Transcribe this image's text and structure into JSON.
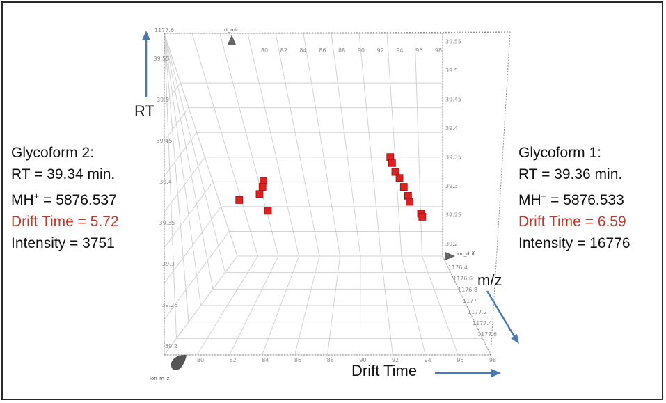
{
  "colors": {
    "grid": "#d2d2d2",
    "frame_dotted": "#8a8a8a",
    "tick": "#8c8c8c",
    "marker": "#e02020",
    "arrow": "#4a78b0",
    "drift_text": "#c0392b"
  },
  "labels": {
    "rt": "RT",
    "mz": "m/z",
    "drift": "Drift Time",
    "axis_rt_min": "rt_min",
    "axis_ion_drift": "ion_drift",
    "axis_ion_mz": "ion_m_z"
  },
  "glycoform2": {
    "title": "Glycoform 2:",
    "rt": "RT = 39.34 min.",
    "mh_prefix": "MH",
    "mh_sup": "+",
    "mh_value": " = 5876.537",
    "drift": "Drift Time = 5.72",
    "intensity": "Intensity = 3751"
  },
  "glycoform1": {
    "title": "Glycoform 1:",
    "rt": "RT = 39.36 min.",
    "mh_prefix": "MH",
    "mh_sup": "+",
    "mh_value": " = 5876.533",
    "drift": "Drift Time = 6.59",
    "intensity": "Intensity = 16776"
  },
  "chart_data": {
    "type": "scatter",
    "projection": "3d",
    "axes": {
      "x": {
        "name": "ion_drift",
        "ticks": [
          "80",
          "82",
          "84",
          "86",
          "88",
          "90",
          "92",
          "94",
          "96",
          "98"
        ]
      },
      "y": {
        "name": "rt_min",
        "ticks_left": [
          "39.2",
          "39.25",
          "39.3",
          "39.35",
          "39.4",
          "39.45",
          "39.5",
          "39.55"
        ],
        "ticks_right": [
          "39.2",
          "39.25",
          "39.3",
          "39.35",
          "39.4",
          "39.45",
          "39.5",
          "39.55"
        ],
        "top_value": "1177.6"
      },
      "z": {
        "name": "ion_m_z",
        "ticks": [
          "1176.4",
          "1176.6",
          "1176.8",
          "1177",
          "1177.2",
          "1177.4",
          "1177.6"
        ]
      }
    },
    "series": [
      {
        "points": [
          {
            "drift": 83.8,
            "rt": 39.305
          },
          {
            "drift": 83.6,
            "rt": 39.295
          },
          {
            "drift": 83.2,
            "rt": 39.283
          },
          {
            "drift": 81.4,
            "rt": 39.273
          },
          {
            "drift": 83.5,
            "rt": 39.255
          }
        ]
      },
      {
        "points": [
          {
            "drift": 94.0,
            "rt": 39.345
          },
          {
            "drift": 94.1,
            "rt": 39.335
          },
          {
            "drift": 94.3,
            "rt": 39.32
          },
          {
            "drift": 94.6,
            "rt": 39.31
          },
          {
            "drift": 94.9,
            "rt": 39.295
          },
          {
            "drift": 95.2,
            "rt": 39.28
          },
          {
            "drift": 95.3,
            "rt": 39.27
          },
          {
            "drift": 96.2,
            "rt": 39.25
          },
          {
            "drift": 96.3,
            "rt": 39.245
          }
        ]
      }
    ]
  }
}
